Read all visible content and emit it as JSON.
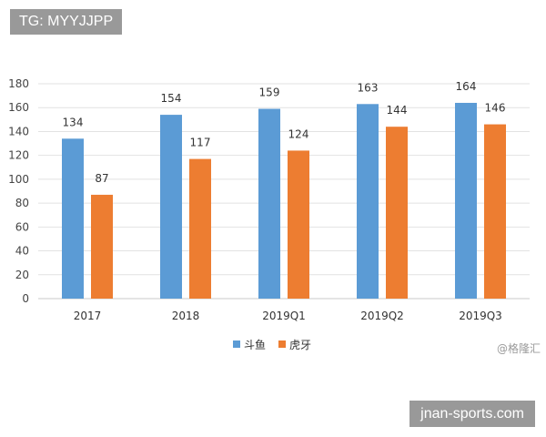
{
  "watermarks": {
    "top": "TG: MYYJJPP",
    "bottom": "jnan-sports.com",
    "credit": "@格隆汇"
  },
  "chart_data": {
    "type": "bar",
    "title": "",
    "xlabel": "",
    "ylabel": "",
    "categories": [
      "2017",
      "2018",
      "2019Q1",
      "2019Q2",
      "2019Q3"
    ],
    "series": [
      {
        "name": "斗鱼",
        "color": "#5b9bd5",
        "values": [
          134,
          154,
          159,
          163,
          164
        ]
      },
      {
        "name": "虎牙",
        "color": "#ed7d31",
        "values": [
          87,
          117,
          124,
          144,
          146
        ]
      }
    ],
    "ylim": [
      0,
      180
    ],
    "yticks": [
      0,
      20,
      40,
      60,
      80,
      100,
      120,
      140,
      160,
      180
    ],
    "grid": true,
    "legend": "bottom-center",
    "data_labels": true
  }
}
